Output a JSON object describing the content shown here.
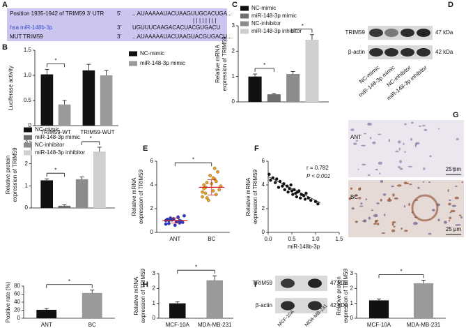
{
  "panel_letters": [
    "A",
    "B",
    "C",
    "D",
    "E",
    "F",
    "G",
    "H",
    "I"
  ],
  "sequence": {
    "rows": [
      {
        "name": "Position 1935-1942 of TRIM59 3' UTR",
        "end": "5'",
        "seq": "...AUAAAAAUACUAAGUUGCACUGA..."
      },
      {
        "name": "hsa miR-148b-3p",
        "end": "3'",
        "seq": "UGUUUCAAGACACUACGUGACU"
      },
      {
        "name": "MUT TRIM59",
        "end": "3'",
        "seq": "...AUAAAAAUACUAAGUACGUGACU..."
      }
    ],
    "pairing": "||||||||"
  },
  "blot_d": {
    "rows": [
      "TRIM59",
      "β-actin"
    ],
    "sizes": [
      "47 kDa",
      "42 kDa"
    ],
    "lanes": [
      "NC-mimic",
      "miR-148-3p mimic",
      "NC-inhibitor",
      "miR-148-3p inhibitor"
    ]
  },
  "blot_i": {
    "rows": [
      "TRIM59",
      "β-actin"
    ],
    "sizes": [
      "47 kDa",
      "42 kDa"
    ],
    "lanes": [
      "MCF-10A",
      "MDA-MB-231"
    ]
  },
  "ihc": {
    "rows": [
      "ANT",
      "BC"
    ],
    "scale": [
      "25 μm",
      "25 μm"
    ]
  },
  "chart_data": [
    {
      "type": "bar",
      "ylabel": [
        "Luciferase activity"
      ],
      "categories": [
        "TRIM59-WT",
        "TRIM59-WUT"
      ],
      "series": [
        {
          "name": "NC-mimic",
          "color": "#111111",
          "values": [
            1.02,
            1.1
          ],
          "errors": [
            0.1,
            0.12
          ]
        },
        {
          "name": "miR-148-3p mimic",
          "color": "#9a9a9a",
          "values": [
            0.42,
            1.0
          ],
          "errors": [
            0.08,
            0.1
          ]
        }
      ],
      "ylim": [
        0,
        1.5
      ],
      "yticks": [
        0,
        0.5,
        {
          "value": 1,
          "label": "1.0"
        },
        1.5
      ],
      "annotations": [
        "*"
      ]
    },
    {
      "type": "bar",
      "ylabel": [
        "Relative mRNA",
        "expression of TRIM59"
      ],
      "categories": [
        null
      ],
      "series": [
        {
          "name": "NC-mimic",
          "color": "#111111",
          "values": [
            1.0
          ],
          "errors": [
            0.1
          ]
        },
        {
          "name": "miR-148-3p mimic",
          "color": "#6e6e6e",
          "values": [
            0.3
          ],
          "errors": [
            0.03
          ]
        },
        {
          "name": "NC-inhibitor",
          "color": "#8c8c8c",
          "values": [
            1.1
          ],
          "errors": [
            0.1
          ]
        },
        {
          "name": "miR-148-3p inhibitor",
          "color": "#cfcfcf",
          "values": [
            2.45
          ],
          "errors": [
            0.2
          ]
        }
      ],
      "ylim": [
        0,
        3
      ],
      "yticks": [
        0,
        1,
        2,
        3
      ],
      "annotations": [
        "*",
        "*"
      ]
    },
    {
      "type": "bar",
      "ylabel": [
        "Relative protein",
        "expression of TRIM59"
      ],
      "categories": [
        null
      ],
      "series": [
        {
          "name": "NC-mimic",
          "color": "#111111",
          "values": [
            1.25
          ],
          "errors": [
            0.07
          ]
        },
        {
          "name": "miR-148-3p mimic",
          "color": "#6e6e6e",
          "values": [
            0.1
          ],
          "errors": [
            0.04
          ]
        },
        {
          "name": "NC-inhibitor",
          "color": "#8c8c8c",
          "values": [
            1.3
          ],
          "errors": [
            0.1
          ]
        },
        {
          "name": "miR-148-3p inhibitor",
          "color": "#cfcfcf",
          "values": [
            2.55
          ],
          "errors": [
            0.2
          ]
        }
      ],
      "ylim": [
        0,
        3
      ],
      "yticks": [
        0,
        1,
        2,
        3
      ],
      "annotations": [
        "*",
        "*"
      ]
    },
    {
      "type": "strip",
      "ylabel": [
        "Relative mRNA",
        "expression of TRIM59"
      ],
      "categories": [
        "ANT",
        "BC"
      ],
      "values": [
        [
          0.7,
          0.9,
          1.1,
          1.3,
          1.0,
          0.8,
          1.2,
          0.95,
          1.05,
          0.85,
          1.15,
          1.4,
          0.6,
          1.0,
          0.9,
          1.1,
          1.25,
          0.75,
          1.0,
          1.2
        ],
        [
          3.0,
          3.5,
          4.0,
          4.5,
          3.8,
          3.2,
          4.2,
          5.1,
          2.7,
          3.6,
          4.8,
          3.9,
          4.1,
          3.4,
          4.6,
          3.7,
          5.4,
          3.3,
          4.3,
          2.9
        ]
      ],
      "colors": [
        "#2b3bd1",
        "#e8a020"
      ],
      "means": [
        1.0,
        3.8
      ],
      "sds": [
        0.22,
        0.65
      ],
      "mean_color": "#d62020",
      "ylim": [
        0,
        6
      ],
      "yticks": [
        0,
        2,
        4,
        6
      ],
      "annotations": [
        "*"
      ]
    },
    {
      "type": "scatter",
      "ylabel": [
        "Relative mRNA",
        "expression of TRIM59"
      ],
      "xlabel": "miR-148b-3p",
      "x": [
        0.02,
        0.05,
        0.1,
        0.15,
        0.18,
        0.22,
        0.25,
        0.3,
        0.33,
        0.35,
        0.4,
        0.42,
        0.45,
        0.48,
        0.5,
        0.52,
        0.55,
        0.58,
        0.6,
        0.62,
        0.65,
        0.68,
        0.7,
        0.75,
        0.78,
        0.8,
        0.85,
        0.9,
        1.0,
        1.05
      ],
      "values": [
        4.9,
        4.4,
        4.6,
        4.2,
        4.5,
        3.8,
        4.3,
        3.9,
        4.1,
        3.6,
        3.9,
        3.4,
        3.7,
        4.0,
        3.5,
        3.2,
        3.6,
        3.3,
        3.0,
        3.4,
        3.5,
        2.9,
        3.2,
        3.1,
        2.8,
        3.3,
        2.9,
        2.7,
        2.6,
        2.4
      ],
      "color": "#111111",
      "fit_x": [
        0,
        1.1
      ],
      "fit_y": [
        4.7,
        2.5
      ],
      "xlim": [
        0,
        1.5
      ],
      "xticks": [
        {
          "value": 0,
          "label": "0.0"
        },
        0.5,
        {
          "value": 1,
          "label": "1.0"
        },
        1.5
      ],
      "ylim": [
        0,
        6
      ],
      "yticks": [
        0,
        2,
        4,
        6
      ],
      "annotations": [
        "r = 0.782",
        "P < 0.001"
      ]
    },
    {
      "type": "bar",
      "ylabel": [
        "Positive rate (%)"
      ],
      "categories": [
        "ANT",
        "BC"
      ],
      "values": [
        21,
        63
      ],
      "errors": [
        3,
        7
      ],
      "colors": [
        "#111111",
        "#9a9a9a"
      ],
      "ylim": [
        0,
        80
      ],
      "yticks": [
        0,
        20,
        40,
        60,
        80
      ],
      "annotations": [
        "*"
      ]
    },
    {
      "type": "bar",
      "ylabel": [
        "Relative mRNA",
        "expression of TRIM59"
      ],
      "categories": [
        "MCF-10A",
        "MDA-MB-231"
      ],
      "values": [
        1.0,
        2.55
      ],
      "errors": [
        0.1,
        0.3
      ],
      "colors": [
        "#111111",
        "#9a9a9a"
      ],
      "ylim": [
        0,
        3
      ],
      "yticks": [
        0,
        1,
        2,
        3
      ],
      "annotations": [
        "*"
      ]
    },
    {
      "type": "bar",
      "ylabel": [
        "Relative protein",
        "expression of TRIM59"
      ],
      "categories": [
        "MCF-10A",
        "MDA-MB-231"
      ],
      "values": [
        1.2,
        2.35
      ],
      "errors": [
        0.1,
        0.2
      ],
      "colors": [
        "#111111",
        "#9a9a9a"
      ],
      "ylim": [
        0,
        3
      ],
      "yticks": [
        0,
        1,
        2,
        3
      ],
      "annotations": [
        "*"
      ]
    }
  ]
}
